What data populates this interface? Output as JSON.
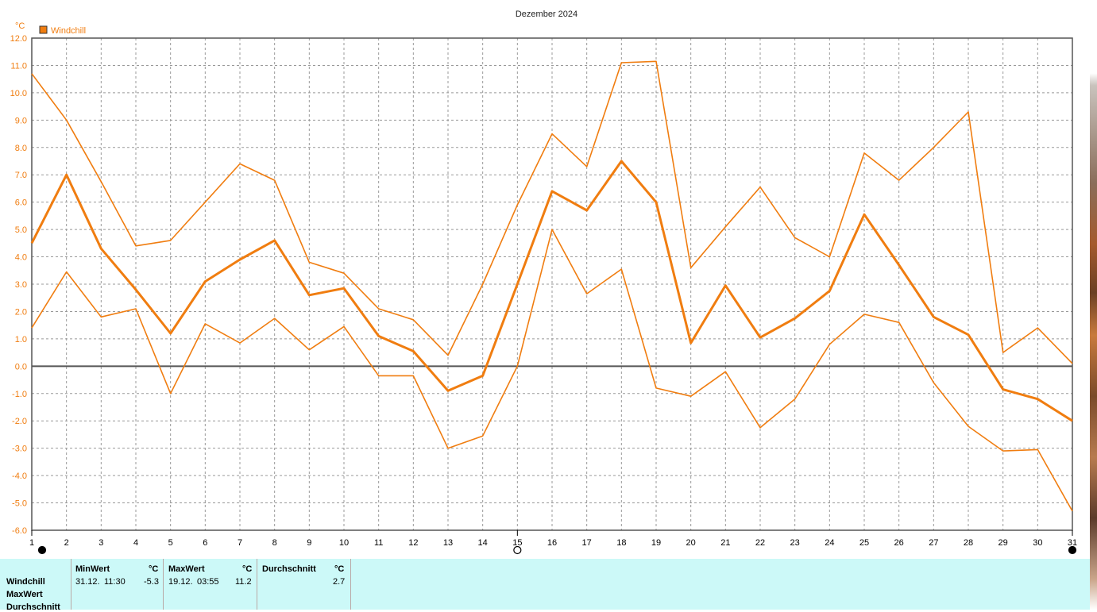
{
  "chart_data": {
    "type": "line",
    "title": "Dezember 2024",
    "y_unit": "°C",
    "legend": [
      "Windchill"
    ],
    "legend_position": "top-left",
    "grid": true,
    "ylim": [
      -6.0,
      12.0
    ],
    "yticks": [
      "12.0",
      "11.0",
      "10.0",
      "9.0",
      "8.0",
      "7.0",
      "6.0",
      "5.0",
      "4.0",
      "3.0",
      "2.0",
      "1.0",
      "0.0",
      "-1.0",
      "-2.0",
      "-3.0",
      "-4.0",
      "-5.0",
      "-6.0"
    ],
    "categories": [
      "1",
      "2",
      "3",
      "4",
      "5",
      "6",
      "7",
      "8",
      "9",
      "10",
      "11",
      "12",
      "13",
      "14",
      "15",
      "16",
      "17",
      "18",
      "19",
      "20",
      "21",
      "22",
      "23",
      "24",
      "25",
      "26",
      "27",
      "28",
      "29",
      "30",
      "31"
    ],
    "series": [
      {
        "name": "Windchill",
        "values": [
          4.5,
          7.0,
          4.3,
          2.8,
          1.2,
          3.1,
          3.9,
          4.6,
          2.6,
          2.85,
          1.1,
          0.55,
          -0.9,
          -0.35,
          3.0,
          6.4,
          5.7,
          7.5,
          6.0,
          0.85,
          2.95,
          1.05,
          1.75,
          2.75,
          5.55,
          3.7,
          1.8,
          1.15,
          -0.85,
          -1.2,
          -2.0
        ]
      },
      {
        "name": "MaxWert",
        "values": [
          10.7,
          9.0,
          6.75,
          4.4,
          4.6,
          6.0,
          7.4,
          6.8,
          3.8,
          3.4,
          2.1,
          1.7,
          0.4,
          3.0,
          5.9,
          8.5,
          7.3,
          11.1,
          11.15,
          3.6,
          5.1,
          6.55,
          4.7,
          4.0,
          7.8,
          6.8,
          8.0,
          9.3,
          0.5,
          1.4,
          0.1
        ]
      },
      {
        "name": "Durchschnitt",
        "values": [
          1.4,
          3.45,
          1.8,
          2.1,
          -1.0,
          1.55,
          0.85,
          1.75,
          0.6,
          1.45,
          -0.35,
          -0.35,
          -3.0,
          -2.55,
          0.0,
          5.0,
          2.65,
          3.55,
          -0.8,
          -1.1,
          -0.2,
          -2.25,
          -1.2,
          0.8,
          1.9,
          1.6,
          -0.6,
          -2.2,
          -3.1,
          -3.05,
          -5.3
        ]
      }
    ],
    "markers": [
      {
        "day": "1",
        "kind": "filled-circle"
      },
      {
        "day": "15",
        "kind": "open-circle"
      },
      {
        "day": "31",
        "kind": "filled-circle"
      }
    ]
  },
  "colors": {
    "line": "#f07d10",
    "grid": "#999999",
    "axis": "#555555",
    "panel_bg": "#ccf9f8"
  },
  "stats": {
    "rows": [
      "Windchill",
      "MaxWert",
      "Durchschnitt"
    ],
    "columns": [
      {
        "header": "MinWert",
        "unit": "°C",
        "date": "31.12.",
        "time": "11:30",
        "value": "-5.3"
      },
      {
        "header": "MaxWert",
        "unit": "°C",
        "date": "19.12.",
        "time": "03:55",
        "value": "11.2"
      },
      {
        "header": "Durchschnitt",
        "unit": "°C",
        "date": "",
        "time": "",
        "value": "2.7"
      }
    ]
  }
}
